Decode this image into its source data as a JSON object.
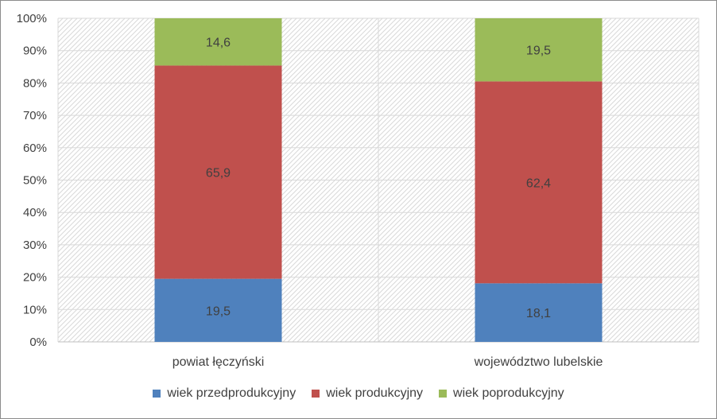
{
  "chart_data": {
    "type": "bar",
    "stacked": true,
    "percent_stacked": true,
    "categories": [
      "powiat łęczyński",
      "województwo lubelskie"
    ],
    "series": [
      {
        "name": "wiek przedprodukcyjny",
        "values": [
          19.5,
          18.1
        ],
        "color": "#4f81bd"
      },
      {
        "name": "wiek produkcyjny",
        "values": [
          65.9,
          62.4
        ],
        "color": "#c0504d"
      },
      {
        "name": "wiek poprodukcyjny",
        "values": [
          14.6,
          19.5
        ],
        "color": "#9bbb59"
      }
    ],
    "data_labels": [
      [
        "19,5",
        "18,1"
      ],
      [
        "65,9",
        "62,4"
      ],
      [
        "14,6",
        "19,5"
      ]
    ],
    "y_ticks": [
      "0%",
      "10%",
      "20%",
      "30%",
      "40%",
      "50%",
      "60%",
      "70%",
      "80%",
      "90%",
      "100%"
    ],
    "ylim": [
      0,
      100
    ],
    "grid": true,
    "legend_position": "bottom",
    "title": "",
    "xlabel": "",
    "ylabel": ""
  }
}
